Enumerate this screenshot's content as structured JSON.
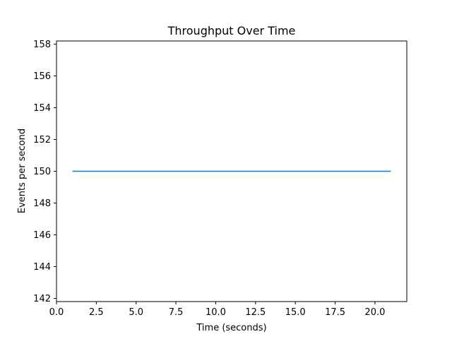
{
  "chart_data": {
    "type": "line",
    "title": "Throughput Over Time",
    "xlabel": "Time (seconds)",
    "ylabel": "Events per second",
    "xlim": [
      0,
      22
    ],
    "ylim": [
      141.8,
      158.2
    ],
    "xticks": [
      0.0,
      2.5,
      5.0,
      7.5,
      10.0,
      12.5,
      15.0,
      17.5,
      20.0
    ],
    "xtick_labels": [
      "0.0",
      "2.5",
      "5.0",
      "7.5",
      "10.0",
      "12.5",
      "15.0",
      "17.5",
      "20.0"
    ],
    "yticks": [
      142,
      144,
      146,
      148,
      150,
      152,
      154,
      156,
      158
    ],
    "ytick_labels": [
      "142",
      "144",
      "146",
      "148",
      "150",
      "152",
      "154",
      "156",
      "158"
    ],
    "grid": false,
    "series": [
      {
        "color": "#1f77b4",
        "x": [
          1,
          21
        ],
        "y": [
          150,
          150
        ]
      }
    ]
  }
}
